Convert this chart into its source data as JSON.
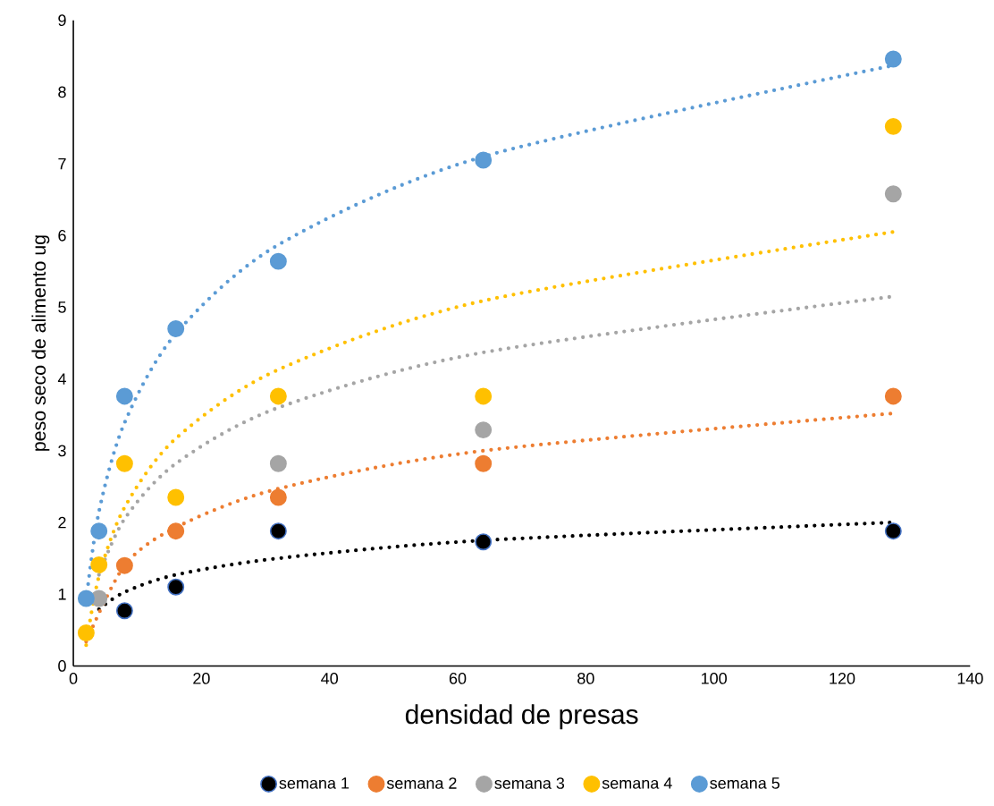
{
  "chart_data": {
    "type": "scatter",
    "xlabel": "densidad de presas",
    "ylabel": "peso seco de alimento ug",
    "x": [
      2,
      4,
      8,
      16,
      32,
      64,
      128
    ],
    "series": [
      {
        "name": "semana 1",
        "color": "#000000",
        "values": [
          null,
          null,
          0.77,
          1.1,
          1.88,
          1.73,
          1.88
        ]
      },
      {
        "name": "semana 2",
        "color": "#ed7d31",
        "values": [
          null,
          null,
          1.4,
          1.88,
          2.35,
          2.82,
          3.76
        ]
      },
      {
        "name": "semana 3",
        "color": "#a5a5a5",
        "values": [
          null,
          0.94,
          null,
          null,
          2.82,
          3.29,
          6.58
        ]
      },
      {
        "name": "semana 4",
        "color": "#ffc000",
        "values": [
          0.46,
          1.41,
          2.82,
          2.35,
          3.76,
          3.76,
          7.52
        ]
      },
      {
        "name": "semana 5",
        "color": "#5b9bd5",
        "values": [
          0.94,
          1.88,
          3.76,
          4.7,
          5.64,
          7.05,
          8.46
        ]
      },
      {
        "type": "line",
        "color": "#000000",
        "line_style": "dotted",
        "marker": "none",
        "values": [
          null,
          0.79,
          1.03,
          1.27,
          1.5,
          1.75,
          2.0
        ]
      },
      {
        "type": "line",
        "color": "#ed7d31",
        "line_style": "dotted",
        "marker": "none",
        "values": [
          0.34,
          null,
          1.4,
          1.93,
          2.47,
          3.0,
          3.52
        ]
      },
      {
        "type": "line",
        "color": "#a5a5a5",
        "line_style": "dotted",
        "marker": "none",
        "values": [
          null,
          1.27,
          2.05,
          2.82,
          3.6,
          4.37,
          5.15
        ]
      },
      {
        "type": "line",
        "color": "#ffc000",
        "line_style": "dotted",
        "marker": "none",
        "values": [
          0.29,
          1.25,
          2.21,
          3.17,
          4.13,
          5.09,
          6.05
        ]
      },
      {
        "type": "line",
        "color": "#5b9bd5",
        "line_style": "dotted",
        "marker": "none",
        "values": [
          0.91,
          2.15,
          3.39,
          4.63,
          5.87,
          7.1,
          8.37
        ]
      }
    ],
    "marker": "circle",
    "xlim": [
      0,
      140
    ],
    "ylim": [
      0,
      9
    ],
    "xticks": [
      0,
      20,
      40,
      60,
      80,
      100,
      120,
      140
    ],
    "yticks": [
      0,
      1,
      2,
      3,
      4,
      5,
      6,
      7,
      8,
      9
    ],
    "grid": false,
    "legend": "bottom"
  }
}
